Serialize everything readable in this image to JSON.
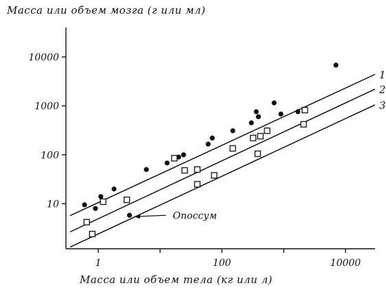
{
  "chart_data": {
    "type": "scatter",
    "title": "",
    "ylabel": "Масса или объем мозга (г или мл)",
    "xlabel": "Масса или объем тела (кг или л)",
    "xscale": "log",
    "yscale": "log",
    "xlim": [
      0.3,
      30000
    ],
    "ylim": [
      1.2,
      40000
    ],
    "x_ticks": [
      1,
      100,
      10000
    ],
    "x_tick_labels": [
      "1",
      "100",
      "10000"
    ],
    "x_minor_ticks": [
      10,
      1000
    ],
    "y_ticks": [
      10,
      100,
      1000,
      10000
    ],
    "y_tick_labels": [
      "10",
      "100",
      "1000",
      "10000"
    ],
    "grid": false,
    "annotation": {
      "text": "Опоссум",
      "target": [
        3.2,
        5.8
      ]
    },
    "series": [
      {
        "name": "1",
        "marker": "filled-circle",
        "points": [
          [
            0.6,
            9.5
          ],
          [
            0.9,
            8
          ],
          [
            1.1,
            14
          ],
          [
            1.8,
            20
          ],
          [
            3.2,
            5.8
          ],
          [
            6,
            50
          ],
          [
            13,
            68
          ],
          [
            20,
            90
          ],
          [
            24,
            100
          ],
          [
            60,
            165
          ],
          [
            70,
            220
          ],
          [
            150,
            310
          ],
          [
            300,
            450
          ],
          [
            360,
            760
          ],
          [
            390,
            600
          ],
          [
            700,
            1150
          ],
          [
            900,
            680
          ],
          [
            1700,
            760
          ],
          [
            7000,
            6800
          ]
        ],
        "fit": [
          [
            0.35,
            5.7
          ],
          [
            30000,
            4400
          ]
        ]
      },
      {
        "name": "2",
        "marker": "open-square",
        "points": [
          [
            0.65,
            4.2
          ],
          [
            1.2,
            11
          ],
          [
            2.9,
            12
          ],
          [
            17,
            85
          ],
          [
            25,
            48
          ],
          [
            40,
            50
          ],
          [
            150,
            135
          ],
          [
            320,
            220
          ],
          [
            420,
            240
          ],
          [
            540,
            310
          ],
          [
            2200,
            820
          ]
        ],
        "fit": [
          [
            0.35,
            2.65
          ],
          [
            30000,
            2200
          ]
        ]
      },
      {
        "name": "3",
        "marker": "open-square",
        "points": [
          [
            0.8,
            2.4
          ],
          [
            40,
            25
          ],
          [
            75,
            38
          ],
          [
            380,
            105
          ],
          [
            2100,
            420
          ]
        ],
        "fit": [
          [
            0.35,
            1.3
          ],
          [
            30000,
            1050
          ]
        ]
      }
    ]
  }
}
